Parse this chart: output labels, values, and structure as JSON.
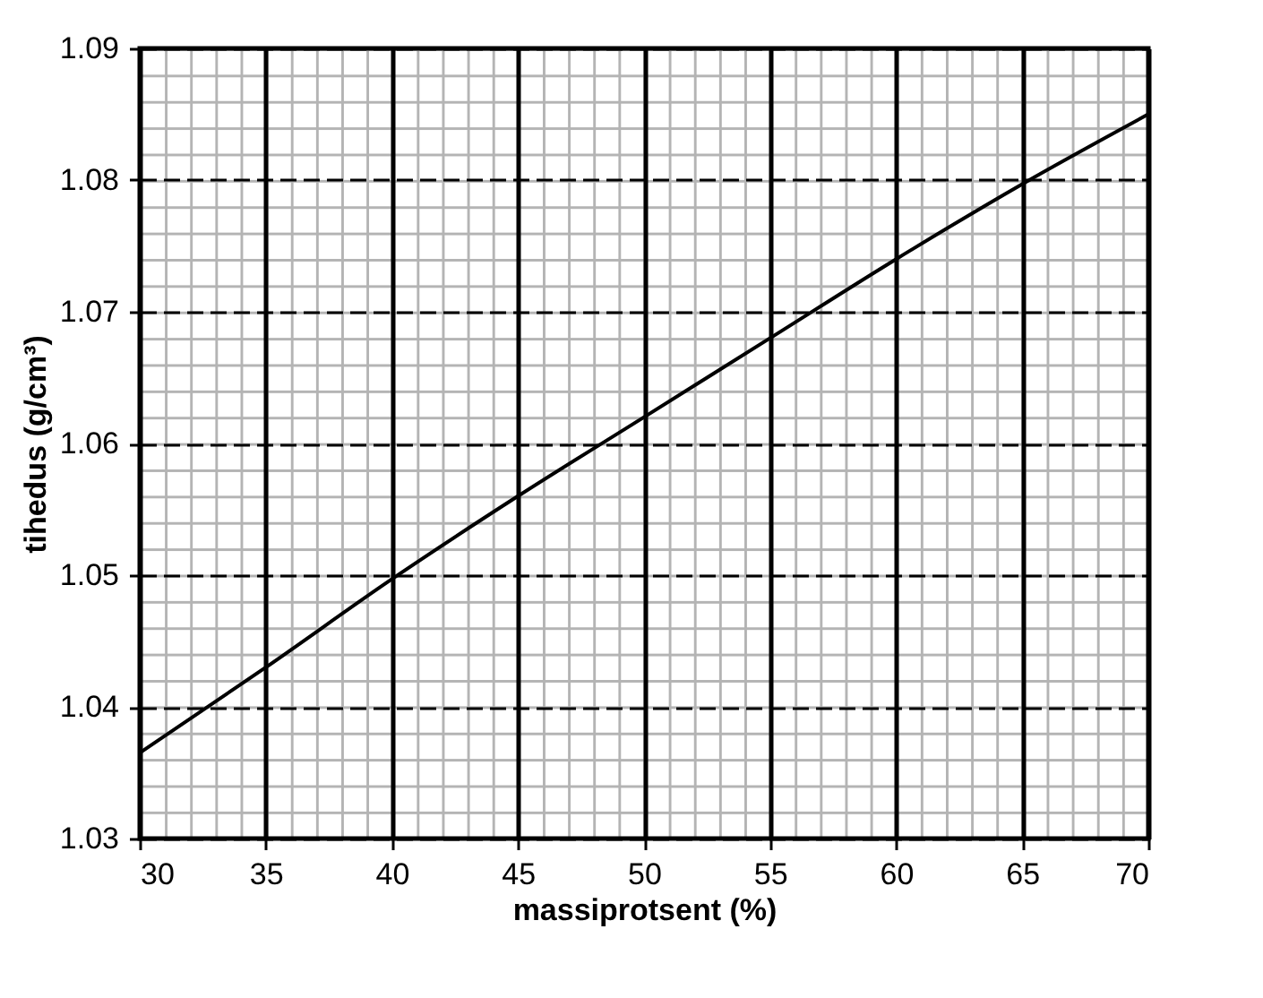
{
  "chart_data": {
    "type": "line",
    "xlabel": "massiprotsent (%)",
    "ylabel": "tihedus (g/cm³)",
    "x": [
      30,
      35,
      40,
      45,
      50,
      55,
      60,
      65,
      70
    ],
    "series": [
      {
        "color": "#000000",
        "values": [
          1.0365,
          1.043,
          1.0497,
          1.056,
          1.062,
          1.068,
          1.074,
          1.0797,
          1.085
        ]
      }
    ],
    "xlim": [
      30,
      70
    ],
    "xticks": [
      30,
      35,
      40,
      45,
      50,
      55,
      60,
      65,
      70
    ],
    "ylim": [
      1.03,
      1.09
    ],
    "yticks": [
      1.03,
      1.04,
      1.05,
      1.06,
      1.07,
      1.08,
      1.09
    ],
    "grid": true,
    "marker": "none",
    "line_style": "solid"
  }
}
